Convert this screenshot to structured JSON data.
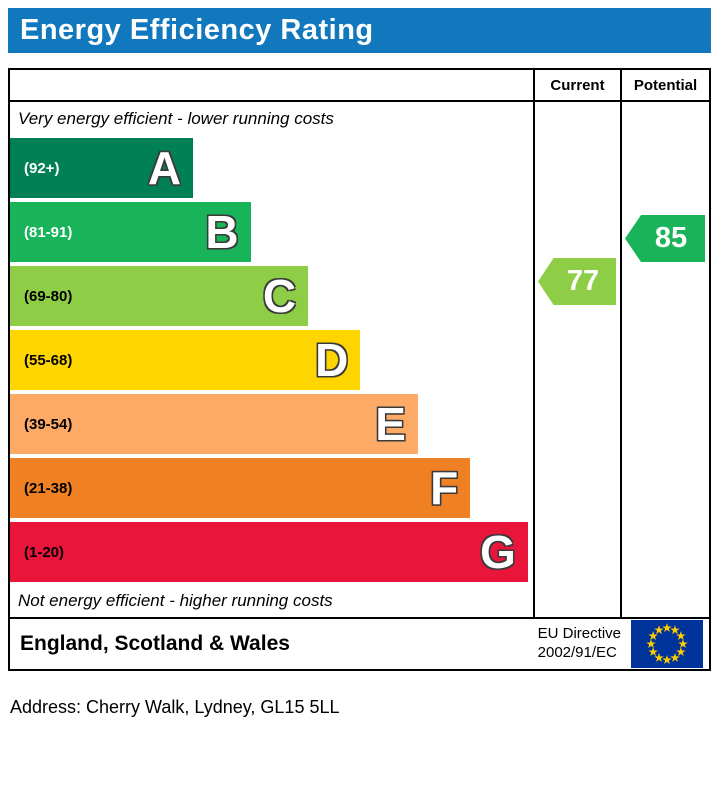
{
  "header": {
    "title": "Energy Efficiency Rating"
  },
  "table": {
    "current_label": "Current",
    "potential_label": "Potential",
    "top_note": "Very energy efficient - lower running costs",
    "bottom_note": "Not energy efficient - higher running costs"
  },
  "footer": {
    "region": "England, Scotland & Wales",
    "directive_line1": "EU Directive",
    "directive_line2": "2002/91/EC",
    "flag_icon": "eu-flag"
  },
  "address": "Address: Cherry Walk, Lydney, GL15 5LL",
  "colors": {
    "header_bg": "#1278be",
    "header_text": "#ffffff",
    "eu_flag_bg": "#003399",
    "eu_flag_stars": "#ffcc00"
  },
  "chart_data": {
    "type": "bar",
    "title": "Energy Efficiency Rating",
    "legend_position": "none",
    "grid": false,
    "bands": [
      {
        "letter": "A",
        "range": "(92+)",
        "min": 92,
        "max": 100,
        "color": "#008054",
        "width_pct": 35,
        "range_text_color": "#ffffff"
      },
      {
        "letter": "B",
        "range": "(81-91)",
        "min": 81,
        "max": 91,
        "color": "#19b459",
        "width_pct": 46,
        "range_text_color": "#ffffff"
      },
      {
        "letter": "C",
        "range": "(69-80)",
        "min": 69,
        "max": 80,
        "color": "#8dce46",
        "width_pct": 57,
        "range_text_color": "#000000"
      },
      {
        "letter": "D",
        "range": "(55-68)",
        "min": 55,
        "max": 68,
        "color": "#ffd500",
        "width_pct": 67,
        "range_text_color": "#000000"
      },
      {
        "letter": "E",
        "range": "(39-54)",
        "min": 39,
        "max": 54,
        "color": "#fcaa65",
        "width_pct": 78,
        "range_text_color": "#000000"
      },
      {
        "letter": "F",
        "range": "(21-38)",
        "min": 21,
        "max": 38,
        "color": "#ef8023",
        "width_pct": 88,
        "range_text_color": "#000000"
      },
      {
        "letter": "G",
        "range": "(1-20)",
        "min": 1,
        "max": 20,
        "color": "#e9153b",
        "width_pct": 99,
        "range_text_color": "#000000"
      }
    ],
    "current": {
      "value": 77,
      "band": "C",
      "color": "#8dce46"
    },
    "potential": {
      "value": 85,
      "band": "B",
      "color": "#19b459"
    }
  }
}
